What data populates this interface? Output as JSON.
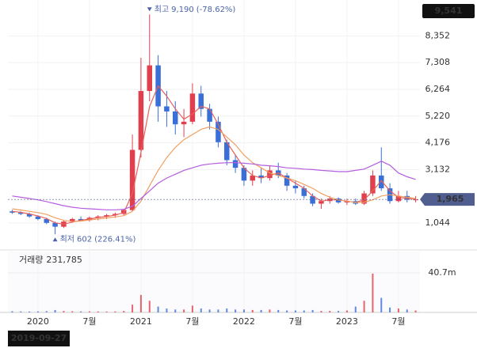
{
  "chart_data": {
    "type": "candlestick",
    "categories": [
      null,
      null,
      null,
      "2020",
      null,
      null,
      null,
      null,
      null,
      "7월",
      null,
      null,
      null,
      null,
      null,
      "2021",
      null,
      null,
      null,
      null,
      null,
      "7월",
      null,
      null,
      null,
      null,
      null,
      "2022",
      null,
      null,
      null,
      null,
      null,
      "7월",
      null,
      null,
      null,
      null,
      null,
      "2023",
      null,
      null,
      null,
      null,
      null,
      "7월",
      null,
      null
    ],
    "open": [
      1500,
      1450,
      1400,
      1300,
      1200,
      1050,
      900,
      1100,
      1200,
      1150,
      1250,
      1300,
      1350,
      1400,
      1550,
      3900,
      6200,
      7200,
      5600,
      5400,
      4900,
      5000,
      6100,
      5500,
      5000,
      4200,
      3500,
      3200,
      2700,
      2900,
      2800,
      3100,
      2900,
      2500,
      2400,
      2100,
      1800,
      1900,
      2000,
      1850,
      1900,
      1800,
      2200,
      2900,
      2400,
      1900,
      2100,
      1950
    ],
    "high": [
      1560,
      1500,
      1450,
      1350,
      1250,
      1100,
      1150,
      1250,
      1300,
      1300,
      1350,
      1400,
      1450,
      1600,
      4500,
      7500,
      9190,
      7600,
      6200,
      5800,
      5500,
      6500,
      6400,
      5700,
      5200,
      4300,
      3700,
      3300,
      3100,
      3200,
      3300,
      3400,
      3000,
      2700,
      2500,
      2200,
      2000,
      2100,
      2050,
      2000,
      2000,
      2300,
      3100,
      4000,
      2600,
      2300,
      2300,
      2100
    ],
    "low": [
      1400,
      1350,
      1250,
      1150,
      1000,
      602,
      850,
      1050,
      1100,
      1100,
      1150,
      1200,
      1250,
      1350,
      1500,
      3600,
      5800,
      5000,
      4800,
      4500,
      4400,
      4900,
      5200,
      4700,
      4000,
      3300,
      3000,
      2500,
      2500,
      2600,
      2700,
      2800,
      2300,
      2200,
      2000,
      1700,
      1600,
      1800,
      1800,
      1750,
      1750,
      1750,
      2100,
      2300,
      1800,
      1850,
      1850,
      1850
    ],
    "close": [
      1450,
      1400,
      1300,
      1200,
      1050,
      900,
      1100,
      1200,
      1150,
      1250,
      1300,
      1350,
      1400,
      1550,
      3900,
      6200,
      7200,
      5600,
      5400,
      4900,
      5000,
      6100,
      5500,
      5000,
      4200,
      3500,
      3200,
      2700,
      2900,
      2800,
      3100,
      2900,
      2500,
      2400,
      2100,
      1800,
      1900,
      2000,
      1850,
      1900,
      1800,
      2200,
      2900,
      2400,
      1900,
      2100,
      1950,
      1965
    ],
    "up_color": "#e0404e",
    "down_color": "#3a6fd8",
    "moving_averages": [
      {
        "color": "#e8605a",
        "values": [
          1500,
          1460,
          1400,
          1320,
          1220,
          1050,
          1000,
          1080,
          1150,
          1200,
          1260,
          1300,
          1350,
          1450,
          2200,
          3800,
          5600,
          6400,
          6000,
          5500,
          5100,
          5300,
          5600,
          5500,
          4900,
          4200,
          3700,
          3200,
          2900,
          2800,
          2900,
          3000,
          2800,
          2600,
          2400,
          2100,
          1900,
          1950,
          1950,
          1900,
          1850,
          1950,
          2300,
          2700,
          2300,
          2050,
          2000,
          1990
        ]
      },
      {
        "color": "#f0a060",
        "values": [
          1600,
          1550,
          1500,
          1450,
          1380,
          1250,
          1150,
          1100,
          1120,
          1160,
          1200,
          1240,
          1280,
          1330,
          1500,
          1900,
          2500,
          3100,
          3600,
          4000,
          4300,
          4500,
          4700,
          4800,
          4700,
          4400,
          4100,
          3700,
          3400,
          3200,
          3000,
          2900,
          2800,
          2700,
          2550,
          2400,
          2200,
          2050,
          1950,
          1900,
          1850,
          1860,
          1950,
          2100,
          2150,
          2100,
          2050,
          2000
        ]
      },
      {
        "color": "#b55ee0",
        "values": [
          2100,
          2050,
          2000,
          1950,
          1880,
          1800,
          1720,
          1660,
          1620,
          1600,
          1580,
          1560,
          1560,
          1580,
          1700,
          2000,
          2300,
          2600,
          2800,
          2950,
          3100,
          3200,
          3300,
          3350,
          3380,
          3400,
          3400,
          3380,
          3350,
          3300,
          3280,
          3250,
          3200,
          3180,
          3150,
          3130,
          3100,
          3080,
          3050,
          3050,
          3100,
          3150,
          3300,
          3460,
          3300,
          3000,
          2850,
          2750
        ]
      }
    ],
    "ylim": [
      117,
      9630
    ],
    "yticks": [
      {
        "value": 1044,
        "label": "1,044"
      },
      {
        "value": 3132,
        "label": "3,132"
      },
      {
        "value": 4176,
        "label": "4,176"
      },
      {
        "value": 5220,
        "label": "5,220"
      },
      {
        "value": 6264,
        "label": "6,264"
      },
      {
        "value": 7308,
        "label": "7,308"
      },
      {
        "value": 8352,
        "label": "8,352"
      }
    ],
    "axis_max": {
      "value": 9541,
      "label": "9,541"
    },
    "last_price": {
      "value": 1965,
      "label": "1,965"
    },
    "annotations": [
      {
        "text": "최고",
        "value": 9190,
        "value_label": "9,190",
        "change": "(-78.62%)",
        "index": 16
      },
      {
        "text": "최저",
        "value": 602,
        "value_label": "602",
        "change": "(226.41%)",
        "index": 5
      }
    ],
    "volume": {
      "title": "거래량",
      "latest": {
        "value": 231785,
        "label": "231,785"
      },
      "values": [
        1200000,
        1000000,
        900000,
        1100000,
        1300000,
        2500000,
        1500000,
        1200000,
        1000000,
        1100000,
        1000000,
        900000,
        1000000,
        1500000,
        8000000,
        18000000,
        12000000,
        6000000,
        4000000,
        3000000,
        3000000,
        7000000,
        4000000,
        3000000,
        3000000,
        4000000,
        3000000,
        3000000,
        2500000,
        2500000,
        3000000,
        2500000,
        2000000,
        2000000,
        2000000,
        2500000,
        1500000,
        1500000,
        1500000,
        2000000,
        6000000,
        12000000,
        40000000,
        15000000,
        5000000,
        4000000,
        3000000,
        2000000
      ],
      "ylim": [
        0,
        62700000
      ],
      "yticks": [
        {
          "value": 40700000,
          "label": "40.7m"
        }
      ]
    },
    "start_date": "2019-09-27"
  }
}
